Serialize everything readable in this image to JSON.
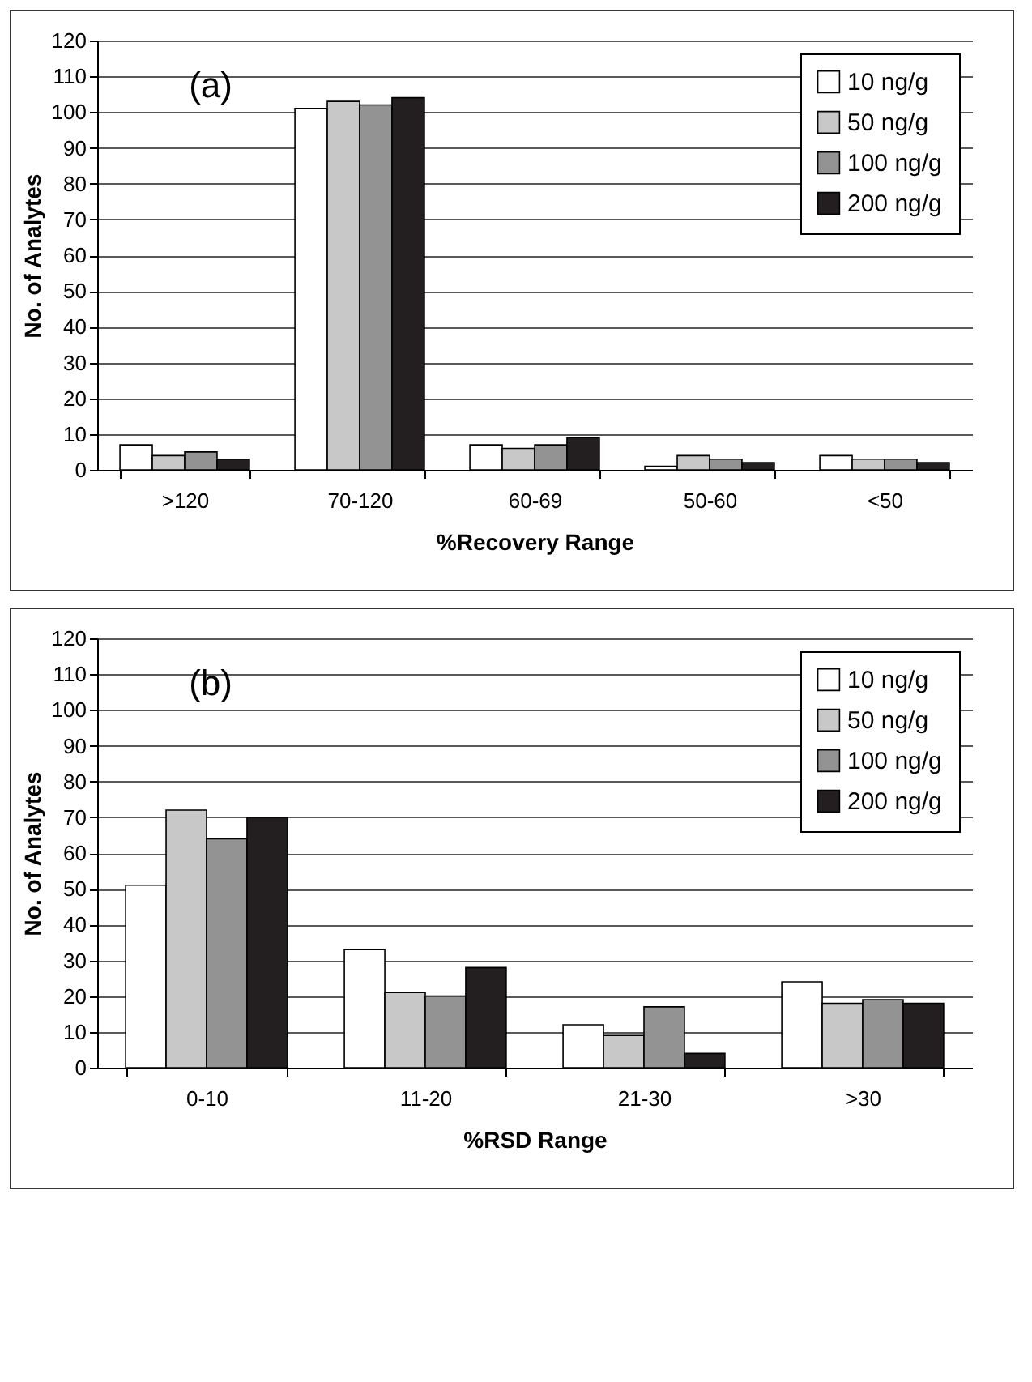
{
  "chart_data": [
    {
      "type": "bar",
      "xlabel": "%Recovery Range",
      "ylabel": "No. of Analytes",
      "annotations": [
        "(a)"
      ],
      "categories": [
        ">120",
        "70-120",
        "60-69",
        "50-60",
        "<50"
      ],
      "ylim": [
        0,
        120
      ],
      "yticks": [
        0,
        10,
        20,
        30,
        40,
        50,
        60,
        70,
        80,
        90,
        100,
        110,
        120
      ],
      "grid": "y",
      "legend": "top right",
      "series": [
        {
          "name": "10 ng/g",
          "color": "#ffffff",
          "values": [
            7,
            101,
            7,
            1,
            4
          ]
        },
        {
          "name": "50 ng/g",
          "color": "#c8c8c8",
          "values": [
            4,
            103,
            6,
            4,
            3
          ]
        },
        {
          "name": "100 ng/g",
          "color": "#939393",
          "values": [
            5,
            102,
            7,
            3,
            3
          ]
        },
        {
          "name": "200 ng/g",
          "color": "#231f20",
          "values": [
            3,
            104,
            9,
            2,
            2
          ]
        }
      ]
    },
    {
      "type": "bar",
      "xlabel": "%RSD Range",
      "ylabel": "No. of Analytes",
      "annotations": [
        "(b)"
      ],
      "categories": [
        "0-10",
        "11-20",
        "21-30",
        ">30"
      ],
      "ylim": [
        0,
        120
      ],
      "yticks": [
        0,
        10,
        20,
        30,
        40,
        50,
        60,
        70,
        80,
        90,
        100,
        110,
        120
      ],
      "grid": "y",
      "legend": "top right",
      "series": [
        {
          "name": "10 ng/g",
          "color": "#ffffff",
          "values": [
            51,
            33,
            12,
            24
          ]
        },
        {
          "name": "50 ng/g",
          "color": "#c8c8c8",
          "values": [
            72,
            21,
            9,
            18
          ]
        },
        {
          "name": "100 ng/g",
          "color": "#939393",
          "values": [
            64,
            20,
            17,
            19
          ]
        },
        {
          "name": "200 ng/g",
          "color": "#231f20",
          "values": [
            70,
            28,
            4,
            18
          ]
        }
      ]
    }
  ]
}
